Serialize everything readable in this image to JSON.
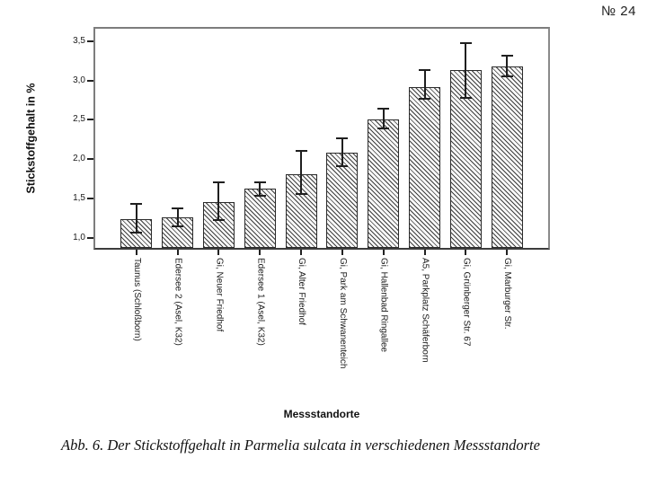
{
  "page": {
    "slide_number": "№ 24",
    "caption": "Abb. 6. Der Stickstoffgehalt in Parmelia sulcata  in verschiedenen Messstandorte"
  },
  "colors": {
    "frame_gray": "#7d7d7d",
    "axis_dark": "#3c3c3c",
    "hatch": "#3f3f3f",
    "text": "#1a1a1a"
  },
  "chart_data": {
    "type": "bar",
    "title": "",
    "xlabel": "Messstandorte",
    "ylabel": "Stickstoffgehalt in %",
    "ylim": [
      0.87,
      3.66
    ],
    "grid": false,
    "bar_fill": "white with dark diagonal hatch",
    "error_bars": true,
    "yticks": [
      {
        "value": 1.0,
        "label": "1,0"
      },
      {
        "value": 1.5,
        "label": "1,5"
      },
      {
        "value": 2.0,
        "label": "2,0"
      },
      {
        "value": 2.5,
        "label": "2,5"
      },
      {
        "value": 3.0,
        "label": "3,0"
      },
      {
        "value": 3.5,
        "label": "3,5"
      }
    ],
    "categories": [
      "Taunus (Schloßborn)",
      "Edersee 2 (Asel, K32)",
      "Gi, Neuer Friedhof",
      "Edersee 1 (Asel, K32)",
      "Gi, Alter Friedhof",
      "Gi, Park am Schwanenteich",
      "Gi, Hallenbad Ringallee",
      "A5, Parkplatz Schäferborn",
      "Gi, Grünberger Str. 67",
      "Gi, Marburger Str."
    ],
    "values": [
      1.24,
      1.26,
      1.45,
      1.62,
      1.81,
      2.08,
      2.51,
      2.92,
      3.13,
      3.18
    ],
    "error_low": [
      1.06,
      1.14,
      1.22,
      1.53,
      1.56,
      1.91,
      2.39,
      2.77,
      2.78,
      3.05
    ],
    "error_high": [
      1.43,
      1.37,
      1.7,
      1.71,
      2.1,
      2.26,
      2.64,
      3.13,
      3.48,
      3.32
    ]
  }
}
